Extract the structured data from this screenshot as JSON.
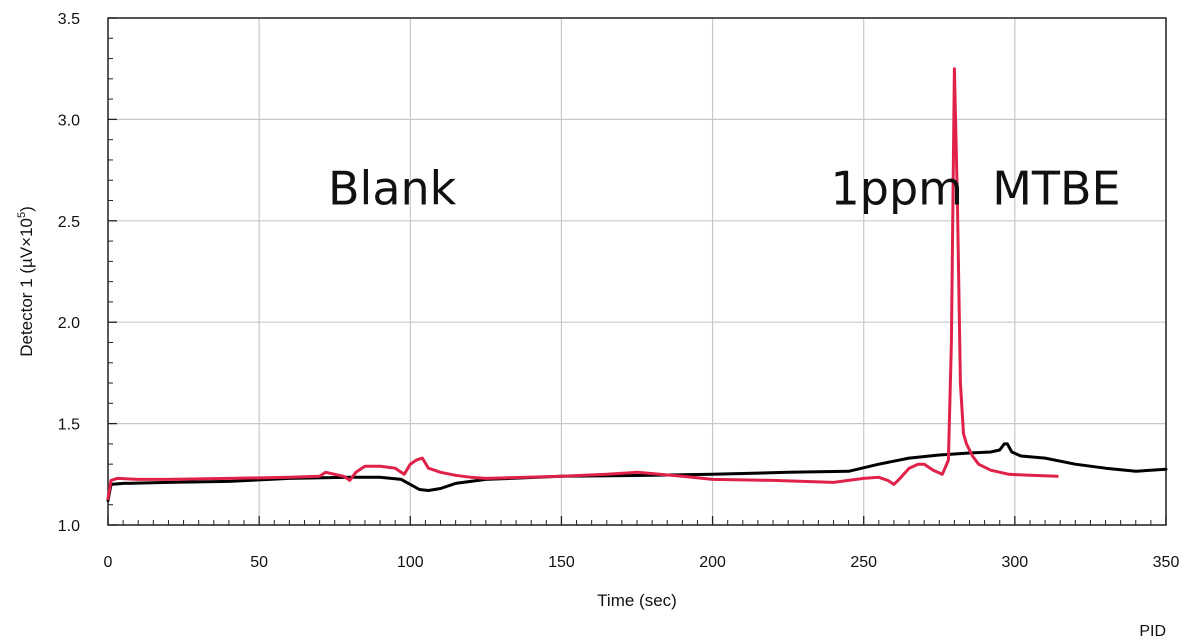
{
  "chart_data": {
    "type": "line",
    "title": "",
    "xlabel": "Time (sec)",
    "ylabel": "Detector 1 (µV×10⁵)",
    "ylabel_parts": {
      "main": "Detector 1 (µV×10",
      "sup": "5",
      "close": ")"
    },
    "xlim": [
      0,
      350
    ],
    "ylim": [
      1.0,
      3.5
    ],
    "xticks": [
      0,
      50,
      100,
      150,
      200,
      250,
      300,
      350
    ],
    "yticks": [
      1.0,
      1.5,
      2.0,
      2.5,
      3.0,
      3.5
    ],
    "xtick_labels": [
      "0",
      "50",
      "100",
      "150",
      "200",
      "250",
      "300",
      "350"
    ],
    "ytick_labels": [
      "1.0",
      "1.5",
      "2.0",
      "2.5",
      "3.0",
      "3.5"
    ],
    "grid": true,
    "annotations": [
      {
        "text": "Blank",
        "x": 94,
        "y": 2.58
      },
      {
        "text": "1ppm  MTBE",
        "x": 287,
        "y": 2.58
      }
    ],
    "footer": "PID",
    "series": [
      {
        "color": "#000000",
        "x": [
          0,
          1,
          5,
          20,
          40,
          60,
          80,
          90,
          97,
          100,
          103,
          106,
          110,
          115,
          125,
          150,
          180,
          200,
          225,
          245,
          255,
          265,
          275,
          285,
          292,
          295,
          296.5,
          297.5,
          299,
          302,
          310,
          320,
          330,
          340,
          350
        ],
        "y": [
          1.12,
          1.2,
          1.205,
          1.21,
          1.215,
          1.23,
          1.235,
          1.235,
          1.225,
          1.2,
          1.175,
          1.17,
          1.18,
          1.205,
          1.225,
          1.24,
          1.245,
          1.25,
          1.26,
          1.265,
          1.3,
          1.33,
          1.345,
          1.355,
          1.36,
          1.37,
          1.4,
          1.4,
          1.36,
          1.34,
          1.33,
          1.3,
          1.28,
          1.265,
          1.275
        ]
      },
      {
        "color": "#e0224a",
        "x": [
          0,
          1,
          3,
          10,
          20,
          40,
          60,
          70,
          72,
          75,
          78,
          80,
          82,
          85,
          90,
          95,
          98,
          100,
          102,
          104,
          106,
          108,
          110,
          115,
          120,
          125,
          150,
          165,
          175,
          190,
          200,
          220,
          240,
          245,
          250,
          255,
          258,
          260,
          262,
          265,
          268,
          270,
          273,
          276,
          278,
          279,
          280,
          281,
          282,
          283,
          284,
          286,
          288,
          292,
          298,
          305,
          314
        ],
        "y": [
          1.13,
          1.22,
          1.23,
          1.225,
          1.225,
          1.23,
          1.235,
          1.24,
          1.26,
          1.25,
          1.24,
          1.22,
          1.26,
          1.29,
          1.29,
          1.28,
          1.25,
          1.3,
          1.32,
          1.33,
          1.28,
          1.27,
          1.26,
          1.245,
          1.235,
          1.23,
          1.24,
          1.25,
          1.26,
          1.24,
          1.225,
          1.22,
          1.21,
          1.22,
          1.23,
          1.235,
          1.22,
          1.2,
          1.23,
          1.28,
          1.3,
          1.3,
          1.27,
          1.25,
          1.32,
          1.9,
          3.25,
          2.6,
          1.7,
          1.45,
          1.4,
          1.34,
          1.3,
          1.27,
          1.25,
          1.245,
          1.24
        ]
      }
    ]
  }
}
